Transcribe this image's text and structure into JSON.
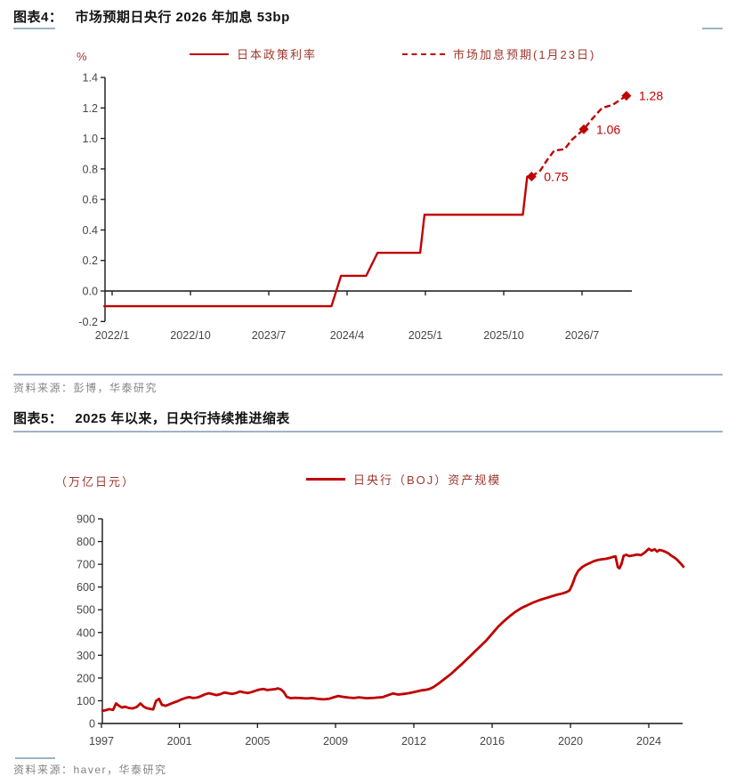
{
  "page": {
    "background": "#ffffff",
    "accent_red": "#c00000",
    "legend_text_red": "#9e372e",
    "divider_color": "#9db3c6",
    "source_gray": "#848484"
  },
  "figure4": {
    "label": "图表4：",
    "title": "市场预期日央行 2026 年加息 53bp",
    "unit": "%",
    "source": "资料来源：彭博，华泰研究"
  },
  "figure5": {
    "label": "图表5：",
    "title": "2025 年以来，日央行持续推进缩表",
    "unit": "（万亿日元）",
    "source": "资料来源：haver，华泰研究"
  },
  "chart_data": [
    {
      "type": "line",
      "title": "市场预期日央行 2026 年加息 53bp",
      "ylabel": "%",
      "ylim": [
        -0.2,
        1.4
      ],
      "ytick_step": 0.2,
      "grid": false,
      "legend_position": "top",
      "x_unit": "months since 2022/1",
      "xticks": [
        {
          "m": 0,
          "label": "2022/1"
        },
        {
          "m": 9,
          "label": "2022/10"
        },
        {
          "m": 18,
          "label": "2023/7"
        },
        {
          "m": 27,
          "label": "2024/4"
        },
        {
          "m": 36,
          "label": "2025/1"
        },
        {
          "m": 45,
          "label": "2025/10"
        },
        {
          "m": 54,
          "label": "2026/7"
        }
      ],
      "series": [
        {
          "name": "日本政策利率",
          "style": "solid",
          "points": [
            [
              -1,
              -0.1
            ],
            [
              25.2,
              -0.1
            ],
            [
              26.3,
              0.1
            ],
            [
              29.2,
              0.1
            ],
            [
              30.5,
              0.25
            ],
            [
              35.4,
              0.25
            ],
            [
              35.9,
              0.5
            ],
            [
              47.2,
              0.5
            ],
            [
              47.7,
              0.75
            ],
            [
              48.2,
              0.75
            ]
          ]
        },
        {
          "name": "市场加息预期(1月23日)",
          "style": "dashed",
          "points": [
            [
              48.2,
              0.75
            ],
            [
              49.2,
              0.79
            ],
            [
              50.0,
              0.86
            ],
            [
              50.8,
              0.92
            ],
            [
              52.0,
              0.93
            ],
            [
              52.8,
              0.99
            ],
            [
              54.2,
              1.06
            ],
            [
              55.2,
              1.13
            ],
            [
              56.3,
              1.2
            ],
            [
              57.5,
              1.22
            ],
            [
              59.1,
              1.28
            ]
          ]
        }
      ],
      "markers": [
        {
          "m": 48.2,
          "v": 0.75,
          "label": "0.75"
        },
        {
          "m": 54.2,
          "v": 1.06,
          "label": "1.06"
        },
        {
          "m": 59.1,
          "v": 1.28,
          "label": "1.28"
        }
      ]
    },
    {
      "type": "line",
      "title": "2025 年以来，日央行持续推进缩表",
      "ylabel": "（万亿日元）",
      "ylim": [
        0,
        900
      ],
      "ytick_step": 100,
      "grid": false,
      "legend_position": "top",
      "xticks": [
        1997,
        2001,
        2005,
        2009,
        2012,
        2016,
        2020,
        2024
      ],
      "series": [
        {
          "name": "日央行（BOJ）资产规模",
          "style": "solid",
          "points": [
            [
              1997.0,
              55
            ],
            [
              1997.2,
              58
            ],
            [
              1997.4,
              63
            ],
            [
              1997.6,
              60
            ],
            [
              1997.75,
              88
            ],
            [
              1997.9,
              78
            ],
            [
              1998.05,
              70
            ],
            [
              1998.2,
              74
            ],
            [
              1998.4,
              68
            ],
            [
              1998.6,
              66
            ],
            [
              1998.8,
              72
            ],
            [
              1999.0,
              88
            ],
            [
              1999.15,
              75
            ],
            [
              1999.3,
              68
            ],
            [
              1999.5,
              64
            ],
            [
              1999.65,
              62
            ],
            [
              1999.8,
              100
            ],
            [
              1999.95,
              108
            ],
            [
              2000.1,
              82
            ],
            [
              2000.3,
              78
            ],
            [
              2000.5,
              85
            ],
            [
              2000.7,
              92
            ],
            [
              2000.9,
              98
            ],
            [
              2001.1,
              106
            ],
            [
              2001.3,
              112
            ],
            [
              2001.5,
              116
            ],
            [
              2001.7,
              112
            ],
            [
              2001.9,
              114
            ],
            [
              2002.1,
              120
            ],
            [
              2002.3,
              128
            ],
            [
              2002.5,
              133
            ],
            [
              2002.7,
              129
            ],
            [
              2002.9,
              125
            ],
            [
              2003.1,
              129
            ],
            [
              2003.3,
              136
            ],
            [
              2003.5,
              133
            ],
            [
              2003.7,
              130
            ],
            [
              2003.9,
              134
            ],
            [
              2004.1,
              141
            ],
            [
              2004.3,
              137
            ],
            [
              2004.5,
              134
            ],
            [
              2004.7,
              138
            ],
            [
              2004.9,
              144
            ],
            [
              2005.1,
              149
            ],
            [
              2005.3,
              152
            ],
            [
              2005.5,
              147
            ],
            [
              2005.7,
              149
            ],
            [
              2005.9,
              151
            ],
            [
              2006.05,
              154
            ],
            [
              2006.2,
              150
            ],
            [
              2006.35,
              138
            ],
            [
              2006.5,
              117
            ],
            [
              2006.7,
              111
            ],
            [
              2006.9,
              113
            ],
            [
              2007.2,
              112
            ],
            [
              2007.5,
              110
            ],
            [
              2007.8,
              112
            ],
            [
              2008.1,
              108
            ],
            [
              2008.4,
              106
            ],
            [
              2008.7,
              109
            ],
            [
              2008.9,
              115
            ],
            [
              2009.1,
              121
            ],
            [
              2009.3,
              117
            ],
            [
              2009.5,
              114
            ],
            [
              2009.7,
              112
            ],
            [
              2009.9,
              115
            ],
            [
              2010.2,
              111
            ],
            [
              2010.5,
              113
            ],
            [
              2010.8,
              116
            ],
            [
              2011.0,
              124
            ],
            [
              2011.2,
              132
            ],
            [
              2011.4,
              127
            ],
            [
              2011.6,
              130
            ],
            [
              2011.8,
              133
            ],
            [
              2012.0,
              138
            ],
            [
              2012.2,
              142
            ],
            [
              2012.4,
              146
            ],
            [
              2012.6,
              148
            ],
            [
              2012.8,
              152
            ],
            [
              2013.0,
              160
            ],
            [
              2013.3,
              178
            ],
            [
              2013.6,
              198
            ],
            [
              2013.9,
              218
            ],
            [
              2014.2,
              242
            ],
            [
              2014.5,
              265
            ],
            [
              2014.8,
              290
            ],
            [
              2015.1,
              315
            ],
            [
              2015.4,
              340
            ],
            [
              2015.7,
              365
            ],
            [
              2016.0,
              395
            ],
            [
              2016.3,
              425
            ],
            [
              2016.6,
              450
            ],
            [
              2016.9,
              472
            ],
            [
              2017.2,
              492
            ],
            [
              2017.5,
              508
            ],
            [
              2017.8,
              520
            ],
            [
              2018.1,
              532
            ],
            [
              2018.4,
              542
            ],
            [
              2018.7,
              550
            ],
            [
              2019.0,
              558
            ],
            [
              2019.3,
              566
            ],
            [
              2019.6,
              572
            ],
            [
              2019.8,
              578
            ],
            [
              2019.95,
              585
            ],
            [
              2020.1,
              612
            ],
            [
              2020.25,
              648
            ],
            [
              2020.4,
              672
            ],
            [
              2020.6,
              688
            ],
            [
              2020.8,
              698
            ],
            [
              2021.0,
              706
            ],
            [
              2021.2,
              714
            ],
            [
              2021.4,
              719
            ],
            [
              2021.6,
              722
            ],
            [
              2021.8,
              724
            ],
            [
              2022.0,
              728
            ],
            [
              2022.15,
              732
            ],
            [
              2022.3,
              735
            ],
            [
              2022.42,
              688
            ],
            [
              2022.5,
              682
            ],
            [
              2022.6,
              700
            ],
            [
              2022.72,
              738
            ],
            [
              2022.85,
              742
            ],
            [
              2023.0,
              736
            ],
            [
              2023.2,
              739
            ],
            [
              2023.4,
              743
            ],
            [
              2023.6,
              740
            ],
            [
              2023.8,
              752
            ],
            [
              2024.0,
              768
            ],
            [
              2024.15,
              760
            ],
            [
              2024.3,
              766
            ],
            [
              2024.42,
              756
            ],
            [
              2024.55,
              763
            ],
            [
              2024.7,
              760
            ],
            [
              2024.85,
              755
            ],
            [
              2025.0,
              748
            ],
            [
              2025.15,
              738
            ],
            [
              2025.3,
              730
            ],
            [
              2025.45,
              720
            ],
            [
              2025.6,
              706
            ],
            [
              2025.72,
              695
            ],
            [
              2025.8,
              686
            ]
          ]
        }
      ]
    }
  ]
}
